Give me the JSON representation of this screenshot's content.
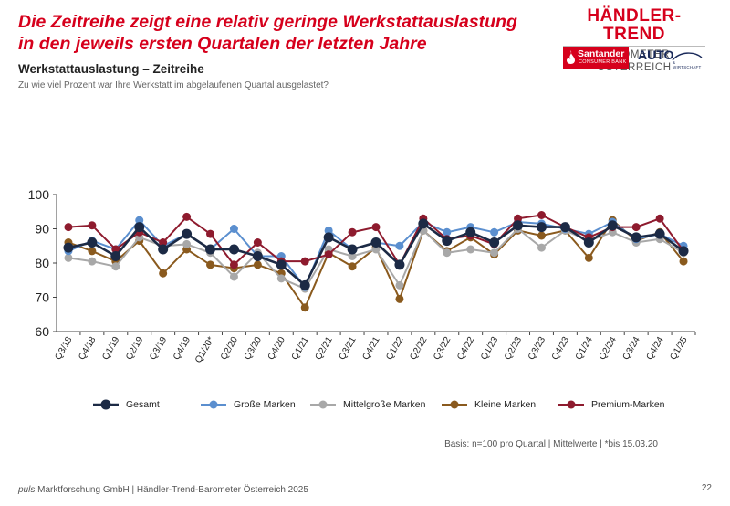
{
  "headline": "Die Zeitreihe zeigt eine relativ geringe Werkstattauslastung in den jeweils ersten Quartalen der letzten Jahre",
  "subtitle": "Werkstattauslastung – Zeitreihe",
  "question": "Zu wie viel Prozent war Ihre Werkstatt im abgelaufenen Quartal ausgelastet?",
  "logo": {
    "title": "HÄNDLER-TREND",
    "subtitle": "BAROMETER ÖSTERREICH"
  },
  "partners": {
    "santander": "Santander",
    "santander_sub": "CONSUMER BANK",
    "auto": "AUTO",
    "auto_sub": "& WIRTSCHAFT"
  },
  "basis": "Basis: n=100 pro Quartal | Mittelwerte | *bis 15.03.20",
  "footer": {
    "brand": "puls",
    "text": " Marktforschung GmbH | Händler-Trend-Barometer Österreich 2025"
  },
  "page_number": "22",
  "chart_data": {
    "type": "line",
    "categories": [
      "Q3/18",
      "Q4/18",
      "Q1/19",
      "Q2/19",
      "Q3/19",
      "Q4/19",
      "Q1/20*",
      "Q2/20",
      "Q3/20",
      "Q4/20",
      "Q1/21",
      "Q2/21",
      "Q3/21",
      "Q4/21",
      "Q1/22",
      "Q2/22",
      "Q3/22",
      "Q4/22",
      "Q1/23",
      "Q2/23",
      "Q3/23",
      "Q4/23",
      "Q1/24",
      "Q2/24",
      "Q3/24",
      "Q4/24",
      "Q1/25"
    ],
    "ylim": [
      60,
      100
    ],
    "yticks": [
      60,
      70,
      80,
      90,
      100
    ],
    "grid": false,
    "legend_position": "bottom",
    "series": [
      {
        "name": "Kleine Marken",
        "color": "#8a5a1e",
        "values": [
          86,
          83.5,
          80.5,
          86.5,
          77,
          84,
          79.5,
          78.5,
          79.5,
          77,
          67,
          83,
          79,
          84.5,
          69.5,
          89.5,
          83.5,
          87.5,
          82.5,
          89.5,
          88,
          89.5,
          81.5,
          92.5,
          86.5,
          89,
          80.5
        ]
      },
      {
        "name": "Mittelgroße Marken",
        "color": "#a8a8a8",
        "values": [
          81.5,
          80.5,
          79,
          87.5,
          85,
          85.5,
          83,
          76,
          83,
          75.5,
          72.5,
          84,
          82,
          84,
          73.5,
          89.5,
          83,
          84,
          83,
          90,
          84.5,
          89.5,
          86.5,
          89,
          86,
          87,
          83
        ]
      },
      {
        "name": "Große Marken",
        "color": "#5b8fcf",
        "values": [
          83.5,
          86.5,
          84,
          92.5,
          85,
          88.5,
          84,
          90,
          82,
          82,
          73,
          89.5,
          84,
          86,
          85,
          92,
          89,
          90.5,
          89,
          92,
          91.5,
          90,
          88.5,
          92,
          87,
          88.5,
          85
        ]
      },
      {
        "name": "Premium-Marken",
        "color": "#8e1b2e",
        "values": [
          90.5,
          91,
          84,
          89,
          86,
          93.5,
          88.5,
          79.5,
          86,
          80.5,
          80.5,
          82.5,
          89,
          90.5,
          79.5,
          93,
          87,
          88,
          85.5,
          93,
          94,
          90.5,
          87.5,
          90.5,
          90.5,
          93,
          83.5
        ]
      },
      {
        "name": "Gesamt",
        "color": "#1c2a45",
        "values": [
          84.5,
          86,
          82,
          90.5,
          84,
          88.5,
          84,
          84,
          82,
          79.5,
          73.5,
          87.5,
          84,
          86,
          79.5,
          91.5,
          86.5,
          89,
          86,
          91,
          90.5,
          90.5,
          86,
          91,
          87.5,
          88.5,
          83.5
        ]
      }
    ],
    "legend_order": [
      "Gesamt",
      "Große Marken",
      "Mittelgroße Marken",
      "Kleine Marken",
      "Premium-Marken"
    ]
  }
}
